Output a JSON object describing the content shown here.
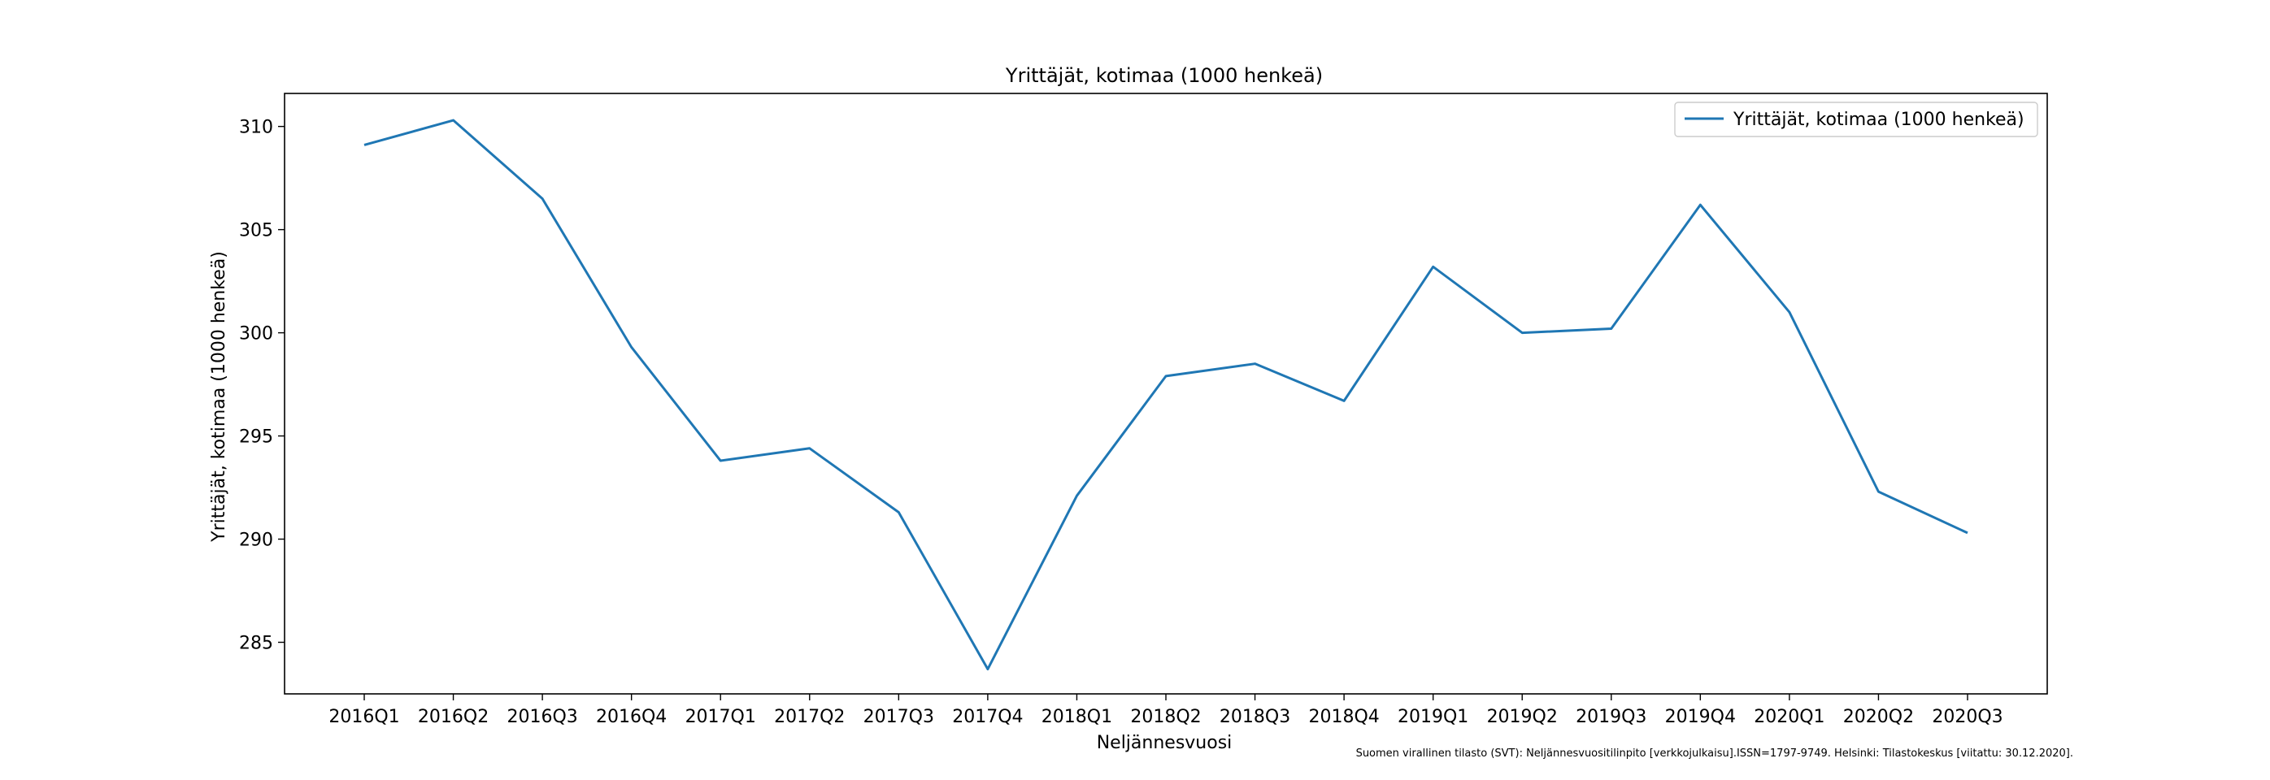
{
  "chart_data": {
    "type": "line",
    "title": "Yrittäjät, kotimaa (1000 henkeä)",
    "xlabel": "Neljännesvuosi",
    "ylabel": "Yrittäjät, kotimaa (1000 henkeä)",
    "categories": [
      "2016Q1",
      "2016Q2",
      "2016Q3",
      "2016Q4",
      "2017Q1",
      "2017Q2",
      "2017Q3",
      "2017Q4",
      "2018Q1",
      "2018Q2",
      "2018Q3",
      "2018Q4",
      "2019Q1",
      "2019Q2",
      "2019Q3",
      "2019Q4",
      "2020Q1",
      "2020Q2",
      "2020Q3"
    ],
    "series": [
      {
        "name": "Yrittäjät, kotimaa (1000 henkeä)",
        "color": "#1f77b4",
        "values": [
          309.1,
          310.3,
          306.5,
          299.3,
          293.8,
          294.4,
          291.3,
          283.7,
          292.1,
          297.9,
          298.5,
          296.7,
          303.2,
          300.0,
          300.2,
          306.2,
          301.0,
          292.3,
          290.3
        ]
      }
    ],
    "yticks": [
      285,
      290,
      295,
      300,
      305,
      310
    ],
    "ylim": [
      282.5,
      311.6
    ],
    "grid": false,
    "legend": "top-right",
    "source_note": "Suomen virallinen tilasto (SVT): Neljännesvuositilinpito [verkkojulkaisu].ISSN=1797-9749. Helsinki: Tilastokeskus [viitattu: 30.12.2020]."
  }
}
